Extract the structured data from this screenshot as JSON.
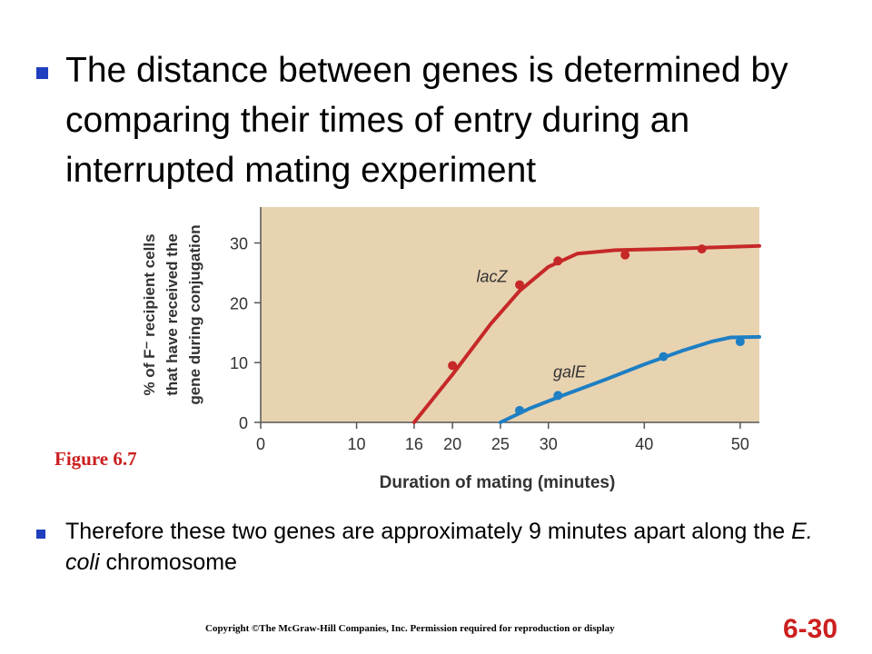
{
  "slide": {
    "title": "The distance between genes is determined by comparing their times of entry during an interrupted mating experiment",
    "figure_label": "Figure 6.7",
    "note_before": "Therefore these two genes are approximately 9 minutes apart along the ",
    "note_italic": "E. coli",
    "note_after": " chromosome",
    "copyright": "Copyright ©The McGraw-Hill Companies, Inc. Permission required for reproduction or display",
    "slide_number": "6-30"
  },
  "colors": {
    "bullet": "#1f3fbf",
    "plot_bg": "#e8d3b1",
    "lacZ": "#c62828",
    "galE": "#1e7fc3",
    "accent_red": "#cc1f1f"
  },
  "chart_data": {
    "type": "scatter",
    "xlabel": "Duration of mating (minutes)",
    "ylabel_lines": [
      "% of F⁻ recipient cells",
      "that have received the",
      "gene during conjugation"
    ],
    "xlim": [
      0,
      52
    ],
    "ylim": [
      0,
      36
    ],
    "x_ticks": [
      0,
      10,
      16,
      20,
      25,
      30,
      40,
      50
    ],
    "y_ticks": [
      0,
      10,
      20,
      30
    ],
    "grid": false,
    "series": [
      {
        "name": "lacZ",
        "points": [
          [
            20,
            9.5
          ],
          [
            27,
            23
          ],
          [
            31,
            27
          ],
          [
            38,
            28
          ],
          [
            46,
            29
          ]
        ],
        "curve": [
          [
            16,
            0
          ],
          [
            20,
            8
          ],
          [
            24,
            16.5
          ],
          [
            27,
            22
          ],
          [
            30,
            26
          ],
          [
            33,
            28.2
          ],
          [
            37,
            28.8
          ],
          [
            42,
            29
          ],
          [
            48,
            29.3
          ],
          [
            52,
            29.5
          ]
        ]
      },
      {
        "name": "galE",
        "points": [
          [
            27,
            2
          ],
          [
            31,
            4.5
          ],
          [
            42,
            11
          ],
          [
            50,
            13.5
          ]
        ],
        "curve": [
          [
            25,
            0
          ],
          [
            28,
            2.3
          ],
          [
            32,
            4.8
          ],
          [
            36,
            7.2
          ],
          [
            40,
            9.7
          ],
          [
            44,
            12
          ],
          [
            47,
            13.5
          ],
          [
            49,
            14.2
          ],
          [
            52,
            14.3
          ]
        ]
      }
    ]
  }
}
